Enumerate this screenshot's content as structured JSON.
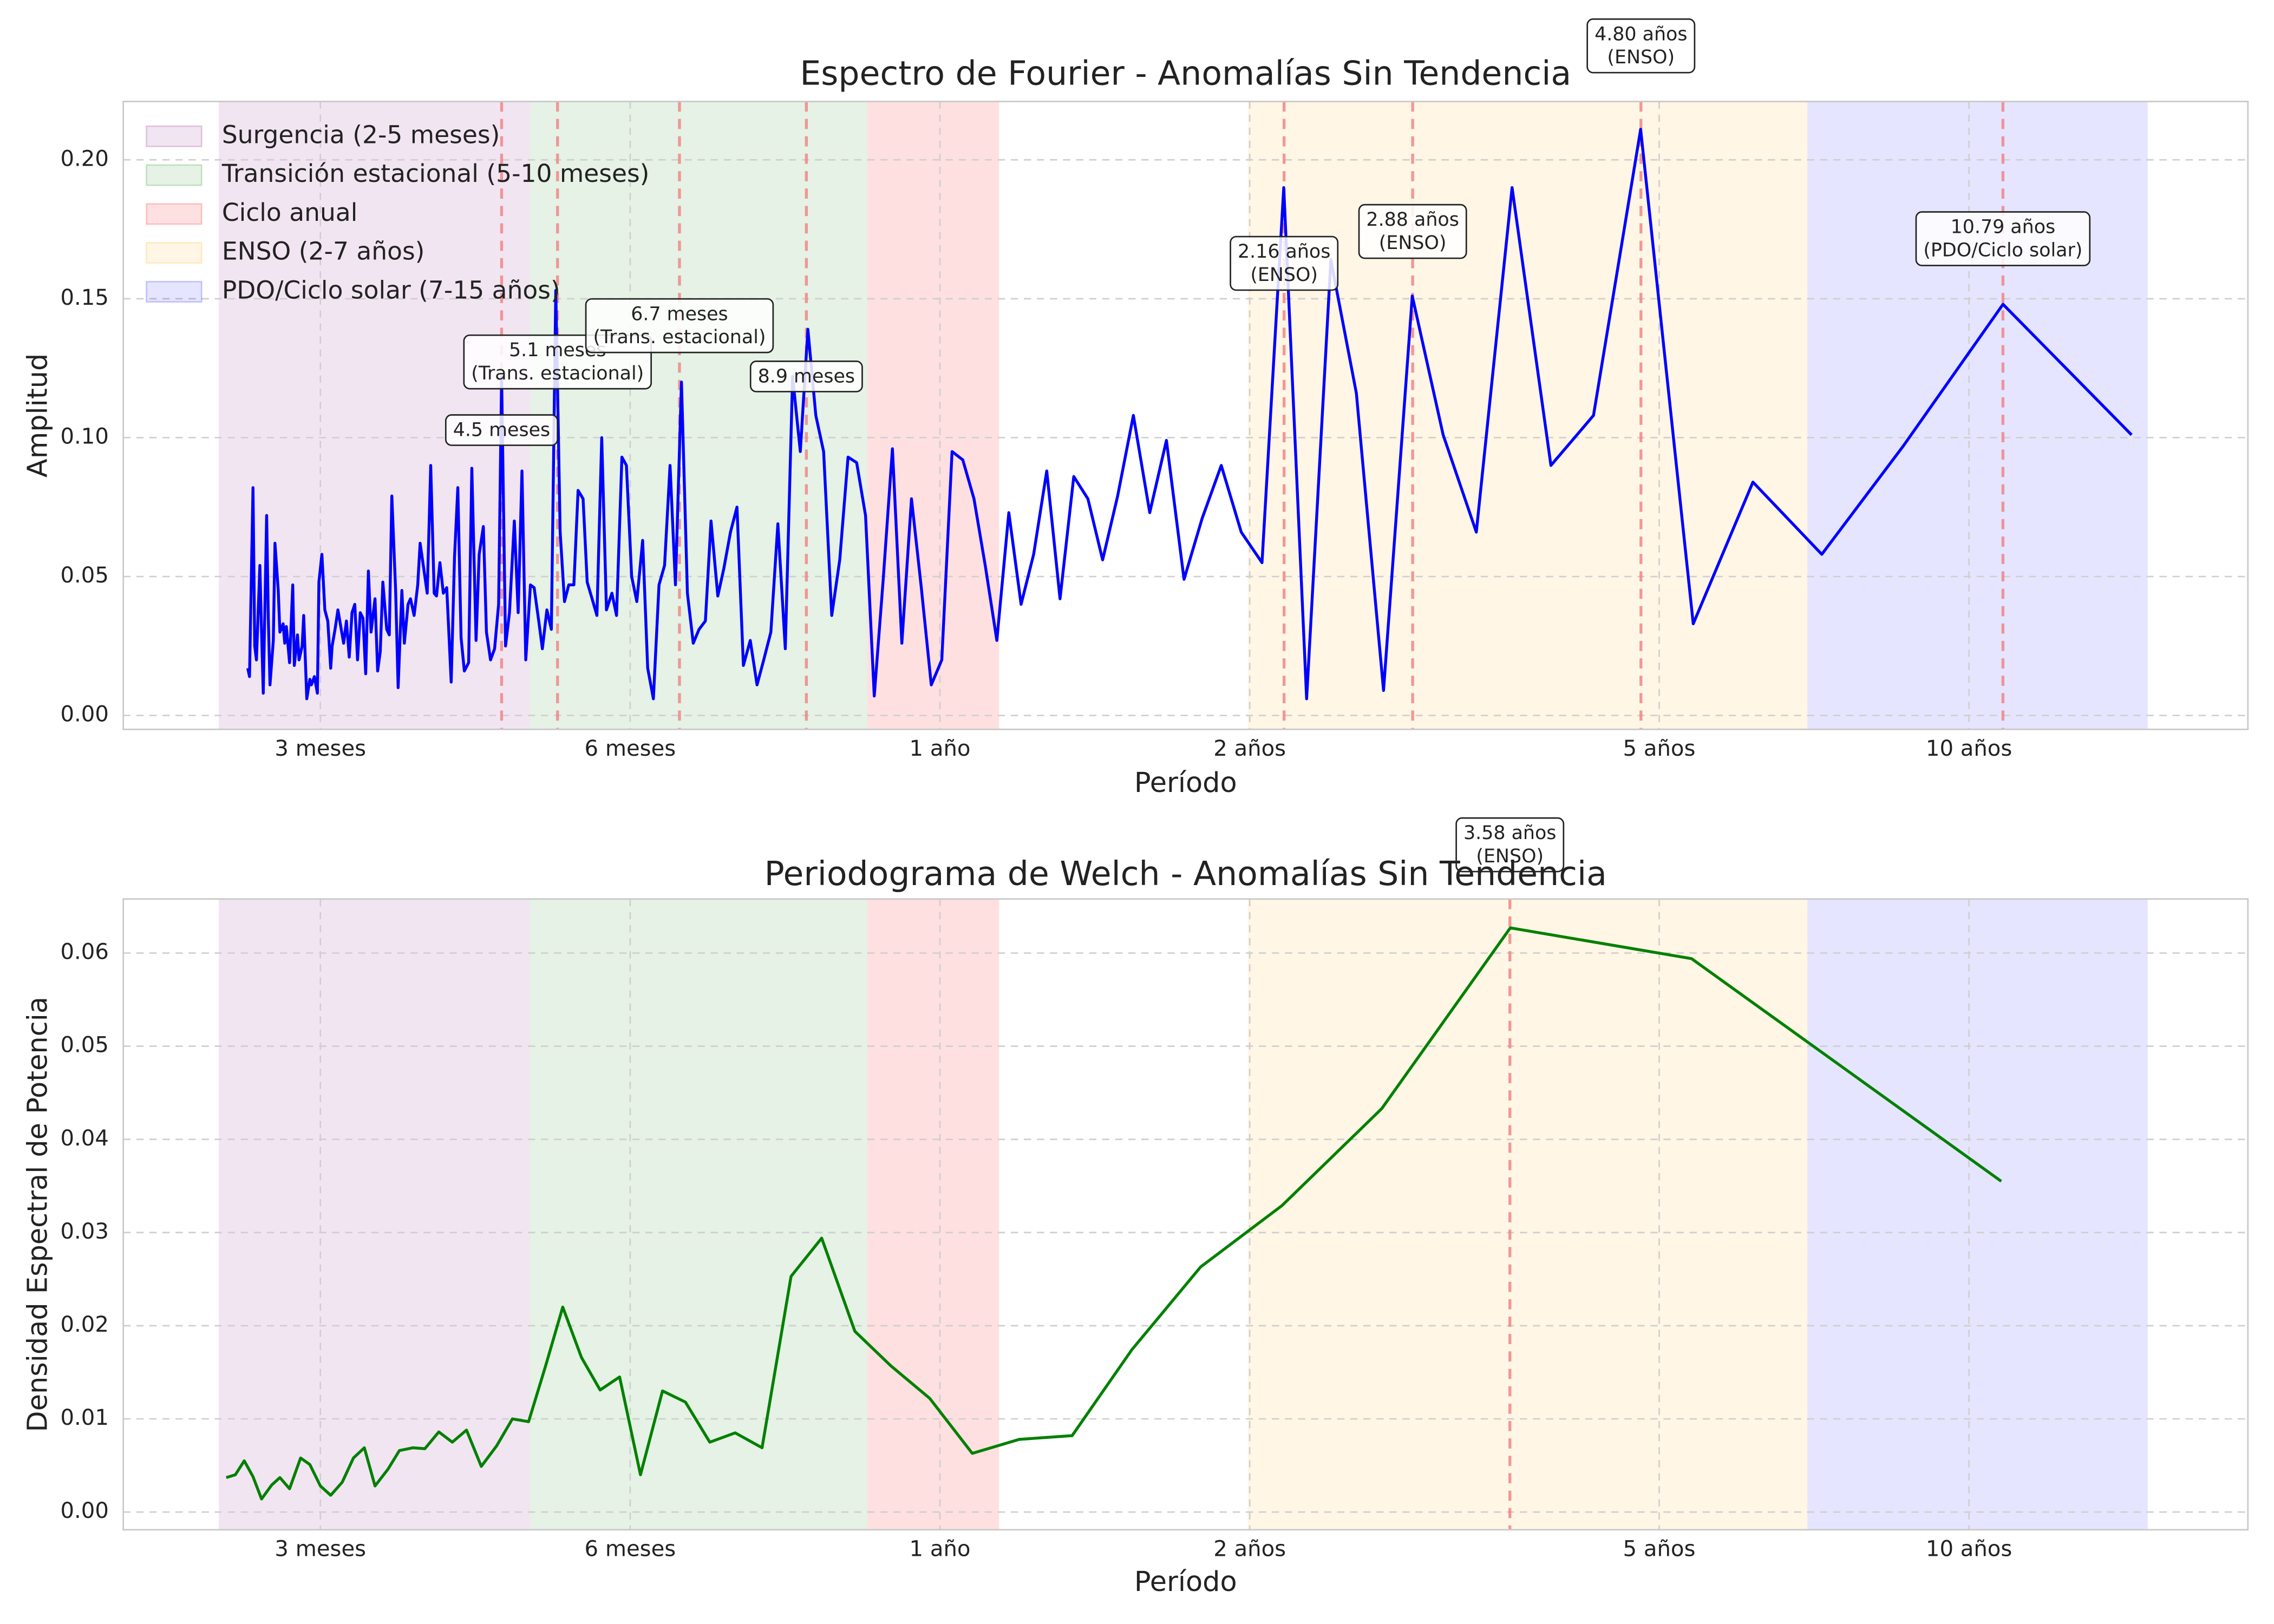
{
  "chart_data": [
    {
      "type": "line",
      "title": "Espectro de Fourier - Anomalías Sin Tendencia",
      "xlabel": "Período",
      "ylabel": "Amplitud",
      "xscale": "log",
      "xlim": [
        1.93,
        224
      ],
      "ylim": [
        -0.005,
        0.221
      ],
      "grid": true,
      "legend": "upper left",
      "color": "blue",
      "xticks": [
        {
          "value": 3,
          "label": "3 meses"
        },
        {
          "value": 6,
          "label": "6 meses"
        },
        {
          "value": 12,
          "label": "1 año"
        },
        {
          "value": 24,
          "label": "2 años"
        },
        {
          "value": 60,
          "label": "5 años"
        },
        {
          "value": 120,
          "label": "10 años"
        }
      ],
      "yticks": [
        {
          "value": 0,
          "label": "0.00"
        },
        {
          "value": 0.05,
          "label": "0.05"
        },
        {
          "value": 0.1,
          "label": "0.10"
        },
        {
          "value": 0.15,
          "label": "0.15"
        },
        {
          "value": 0.2,
          "label": "0.20"
        }
      ],
      "bands": [
        {
          "name": "Surgencia (2-5 meses)",
          "range": [
            2.39,
            4.8
          ],
          "color": "purple"
        },
        {
          "name": "Transición estacional (5-10 meses)",
          "range": [
            4.8,
            10.2
          ],
          "color": "green"
        },
        {
          "name": "Ciclo anual",
          "range": [
            10.2,
            13.7
          ],
          "color": "red"
        },
        {
          "name": "ENSO (2-7 años)",
          "range": [
            23.9,
            83.6
          ],
          "color": "orange"
        },
        {
          "name": "PDO/Ciclo solar (7-15 años)",
          "range": [
            83.6,
            179
          ],
          "color": "blue"
        }
      ],
      "annotations": [
        {
          "x": 4.5,
          "lines": [
            "4.5 meses"
          ]
        },
        {
          "x": 5.1,
          "lines": [
            "5.1 meses",
            "(Trans. estacional)"
          ]
        },
        {
          "x": 6.7,
          "lines": [
            "6.7 meses",
            "(Trans. estacional)"
          ]
        },
        {
          "x": 8.9,
          "lines": [
            "8.9 meses"
          ]
        },
        {
          "x": 25.92,
          "lines": [
            "2.16 años",
            "(ENSO)"
          ]
        },
        {
          "x": 34.56,
          "lines": [
            "2.88 años",
            "(ENSO)"
          ]
        },
        {
          "x": 57.6,
          "lines": [
            "4.80 años",
            "(ENSO)"
          ]
        },
        {
          "x": 129.48,
          "lines": [
            "10.79 años",
            "(PDO/Ciclo solar)"
          ]
        }
      ],
      "x": [
        172.67,
        129.5,
        103.6,
        86.33,
        74,
        64.75,
        57.56,
        51.8,
        47.09,
        43.17,
        39.85,
        37,
        34.53,
        32.38,
        30.47,
        28.78,
        27.26,
        25.9,
        24.67,
        23.55,
        22.52,
        21.58,
        20.72,
        19.92,
        19.19,
        18.5,
        17.86,
        17.27,
        16.71,
        16.19,
        15.7,
        15.24,
        14.8,
        14.39,
        14,
        13.63,
        13.28,
        12.95,
        12.63,
        12.33,
        12.05,
        11.77,
        11.51,
        11.26,
        11.02,
        10.79,
        10.57,
        10.36,
        10.16,
        9.96,
        9.77,
        9.59,
        9.42,
        9.25,
        9.09,
        8.93,
        8.78,
        8.63,
        8.49,
        8.35,
        8.22,
        8.09,
        7.97,
        7.85,
        7.73,
        7.62,
        7.51,
        7.4,
        7.3,
        7.19,
        7.1,
        7,
        6.91,
        6.82,
        6.73,
        6.64,
        6.56,
        6.48,
        6.4,
        6.32,
        6.24,
        6.17,
        6.09,
        6.02,
        5.95,
        5.89,
        5.82,
        5.76,
        5.69,
        5.63,
        5.57,
        5.51,
        5.45,
        5.4,
        5.34,
        5.29,
        5.23,
        5.18,
        5.13,
        5.08,
        5.03,
        4.98,
        4.93,
        4.89,
        4.84,
        4.8,
        4.75,
        4.71,
        4.67,
        4.63,
        4.58,
        4.54,
        4.5,
        4.47,
        4.43,
        4.39,
        4.35,
        4.32,
        4.28,
        4.25,
        4.21,
        4.18,
        4.14,
        4.11,
        4.08,
        4.05,
        4.02,
        3.98,
        3.95,
        3.92,
        3.89,
        3.87,
        3.84,
        3.81,
        3.78,
        3.75,
        3.73,
        3.7,
        3.67,
        3.65,
        3.62,
        3.6,
        3.57,
        3.55,
        3.52,
        3.5,
        3.48,
        3.45,
        3.43,
        3.41,
        3.39,
        3.36,
        3.34,
        3.32,
        3.3,
        3.28,
        3.26,
        3.24,
        3.22,
        3.2,
        3.18,
        3.16,
        3.14,
        3.12,
        3.1,
        3.08,
        3.07,
        3.05,
        3.03,
        3.01,
        2.99,
        2.98,
        2.96,
        2.94,
        2.93,
        2.91,
        2.89,
        2.88,
        2.86,
        2.85,
        2.83,
        2.82,
        2.8,
        2.78,
        2.77,
        2.76,
        2.74,
        2.73,
        2.71,
        2.7,
        2.68,
        2.67,
        2.66,
        2.64,
        2.63,
        2.62,
        2.6,
        2.59,
        2.58,
        2.56,
        2.55
      ],
      "values": [
        0.101,
        0.148,
        0.097,
        0.058,
        0.084,
        0.033,
        0.211,
        0.108,
        0.09,
        0.19,
        0.066,
        0.101,
        0.151,
        0.009,
        0.116,
        0.164,
        0.006,
        0.19,
        0.055,
        0.066,
        0.09,
        0.071,
        0.049,
        0.099,
        0.073,
        0.108,
        0.079,
        0.056,
        0.078,
        0.086,
        0.042,
        0.088,
        0.058,
        0.04,
        0.073,
        0.027,
        0.054,
        0.078,
        0.092,
        0.095,
        0.02,
        0.011,
        0.046,
        0.078,
        0.026,
        0.096,
        0.049,
        0.007,
        0.072,
        0.091,
        0.093,
        0.056,
        0.036,
        0.095,
        0.108,
        0.139,
        0.095,
        0.122,
        0.024,
        0.069,
        0.03,
        0.02,
        0.011,
        0.027,
        0.018,
        0.075,
        0.066,
        0.053,
        0.043,
        0.07,
        0.034,
        0.031,
        0.026,
        0.044,
        0.12,
        0.047,
        0.09,
        0.054,
        0.047,
        0.006,
        0.017,
        0.063,
        0.041,
        0.05,
        0.09,
        0.093,
        0.036,
        0.044,
        0.038,
        0.1,
        0.036,
        0.042,
        0.048,
        0.078,
        0.081,
        0.047,
        0.047,
        0.041,
        0.066,
        0.153,
        0.031,
        0.038,
        0.024,
        0.034,
        0.046,
        0.047,
        0.02,
        0.088,
        0.037,
        0.07,
        0.037,
        0.025,
        0.122,
        0.04,
        0.024,
        0.02,
        0.03,
        0.068,
        0.058,
        0.027,
        0.089,
        0.019,
        0.016,
        0.028,
        0.082,
        0.057,
        0.012,
        0.046,
        0.044,
        0.055,
        0.043,
        0.044,
        0.09,
        0.044,
        0.053,
        0.062,
        0.047,
        0.036,
        0.042,
        0.04,
        0.026,
        0.045,
        0.01,
        0.045,
        0.079,
        0.029,
        0.031,
        0.048,
        0.023,
        0.016,
        0.042,
        0.03,
        0.052,
        0.015,
        0.035,
        0.037,
        0.02,
        0.04,
        0.037,
        0.021,
        0.034,
        0.026,
        0.032,
        0.038,
        0.031,
        0.025,
        0.017,
        0.034,
        0.038,
        0.058,
        0.048,
        0.008,
        0.014,
        0.011,
        0.013,
        0.006,
        0.036,
        0.025,
        0.02,
        0.029,
        0.018,
        0.047,
        0.019,
        0.032,
        0.026,
        0.033,
        0.03,
        0.045,
        0.062,
        0.027,
        0.011,
        0.035,
        0.072,
        0.008,
        0.03,
        0.054,
        0.02,
        0.025,
        0.082,
        0.014,
        0.017
      ]
    },
    {
      "type": "line",
      "title": "Periodograma de Welch - Anomalías Sin Tendencia",
      "xlabel": "Período",
      "ylabel": "Densidad Espectral de Potencia",
      "xscale": "log",
      "xlim": [
        1.93,
        224
      ],
      "ylim": [
        -0.0019,
        0.0658
      ],
      "grid": true,
      "color": "green",
      "xticks": [
        {
          "value": 3,
          "label": "3 meses"
        },
        {
          "value": 6,
          "label": "6 meses"
        },
        {
          "value": 12,
          "label": "1 año"
        },
        {
          "value": 24,
          "label": "2 años"
        },
        {
          "value": 60,
          "label": "5 años"
        },
        {
          "value": 120,
          "label": "10 años"
        }
      ],
      "yticks": [
        {
          "value": 0,
          "label": "0.00"
        },
        0.01,
        0.02,
        0.03,
        0.04,
        0.05,
        0.06
      ],
      "bands": [
        {
          "range": [
            2.39,
            4.8
          ],
          "color": "purple"
        },
        {
          "range": [
            4.8,
            10.2
          ],
          "color": "green"
        },
        {
          "range": [
            10.2,
            13.7
          ],
          "color": "red"
        },
        {
          "range": [
            23.9,
            83.6
          ],
          "color": "orange"
        },
        {
          "range": [
            83.6,
            179
          ],
          "color": "blue"
        }
      ],
      "annotations": [
        {
          "x": 42.96,
          "lines": [
            "3.58 años",
            "(ENSO)"
          ]
        }
      ],
      "x": [
        129,
        64.5,
        43,
        32.25,
        25.8,
        21.5,
        18.43,
        16.13,
        14.33,
        12.9,
        11.73,
        10.75,
        9.92,
        9.21,
        8.6,
        8.06,
        7.59,
        7.17,
        6.79,
        6.45,
        6.14,
        5.86,
        5.61,
        5.38,
        5.16,
        4.96,
        4.78,
        4.61,
        4.45,
        4.3,
        4.16,
        4.03,
        3.91,
        3.79,
        3.69,
        3.58,
        3.49,
        3.39,
        3.31,
        3.23,
        3.15,
        3.07,
        3,
        2.93,
        2.87,
        2.8,
        2.74,
        2.69,
        2.63,
        2.58,
        2.53,
        2.48,
        2.43
      ],
      "values": [
        0.0355,
        0.0594,
        0.0627,
        0.0433,
        0.0329,
        0.0263,
        0.0174,
        0.0082,
        0.0078,
        0.0063,
        0.0122,
        0.0157,
        0.0194,
        0.0294,
        0.0253,
        0.0069,
        0.0085,
        0.0075,
        0.0118,
        0.013,
        0.004,
        0.0145,
        0.0131,
        0.0166,
        0.022,
        0.0155,
        0.0097,
        0.01,
        0.0071,
        0.0049,
        0.0088,
        0.0075,
        0.0086,
        0.0068,
        0.0069,
        0.0066,
        0.0046,
        0.0028,
        0.0069,
        0.0058,
        0.0032,
        0.0018,
        0.0028,
        0.0051,
        0.0058,
        0.0025,
        0.0037,
        0.0029,
        0.0014,
        0.0038,
        0.0055,
        0.004,
        0.0037
      ]
    }
  ]
}
